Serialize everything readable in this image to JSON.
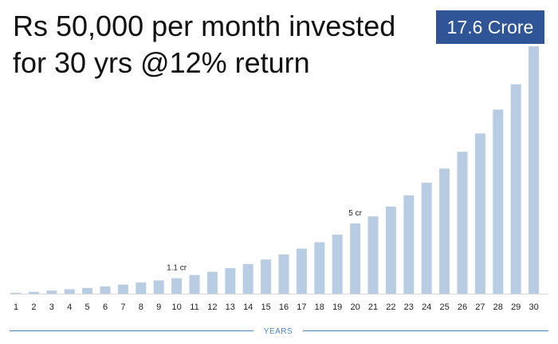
{
  "title_lines": [
    "Rs 50,000 per month invested",
    "for 30 yrs @12% return"
  ],
  "badge": "17.6 Crore",
  "colors": {
    "bar": "#b8cce4",
    "badge_bg": "#2f5597",
    "axis_label": "#4a86c5"
  },
  "chart_data": {
    "type": "bar",
    "title": "Rs 50,000 per month invested for 30 yrs @12% return",
    "xlabel": "YEARS",
    "ylabel": "",
    "categories": [
      "1",
      "2",
      "3",
      "4",
      "5",
      "6",
      "7",
      "8",
      "9",
      "10",
      "11",
      "12",
      "13",
      "14",
      "15",
      "16",
      "17",
      "18",
      "19",
      "20",
      "21",
      "22",
      "23",
      "24",
      "25",
      "26",
      "27",
      "28",
      "29",
      "30"
    ],
    "values": [
      0.06,
      0.13,
      0.22,
      0.32,
      0.41,
      0.52,
      0.65,
      0.8,
      0.95,
      1.1,
      1.33,
      1.56,
      1.82,
      2.11,
      2.43,
      2.8,
      3.21,
      3.66,
      4.2,
      5.0,
      5.5,
      6.2,
      7.0,
      7.9,
      8.9,
      10.1,
      11.4,
      13.1,
      14.9,
      17.6
    ],
    "ylim": [
      0,
      17.6
    ],
    "grid": false,
    "annotations": [
      {
        "category": "10",
        "text": "1.1 cr"
      },
      {
        "category": "20",
        "text": "5 cr"
      }
    ]
  }
}
